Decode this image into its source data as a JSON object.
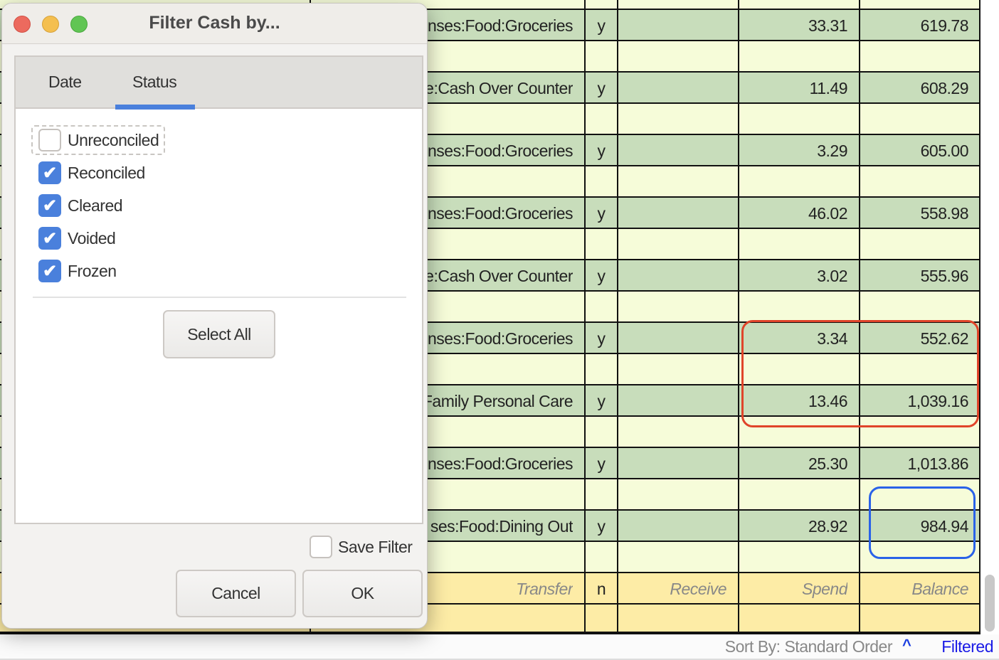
{
  "register": {
    "rows": [
      {
        "transfer": "nses:Food:Groceries",
        "reconcile": "y",
        "receive": "",
        "spend": "33.31",
        "balance": "619.78"
      },
      {
        "transfer": "e:Cash Over Counter",
        "reconcile": "y",
        "receive": "",
        "spend": "11.49",
        "balance": "608.29"
      },
      {
        "transfer": "nses:Food:Groceries",
        "reconcile": "y",
        "receive": "",
        "spend": "3.29",
        "balance": "605.00"
      },
      {
        "transfer": "nses:Food:Groceries",
        "reconcile": "y",
        "receive": "",
        "spend": "46.02",
        "balance": "558.98"
      },
      {
        "transfer": "e:Cash Over Counter",
        "reconcile": "y",
        "receive": "",
        "spend": "3.02",
        "balance": "555.96"
      },
      {
        "transfer": "nses:Food:Groceries",
        "reconcile": "y",
        "receive": "",
        "spend": "3.34",
        "balance": "552.62"
      },
      {
        "transfer": "Family Personal Care",
        "reconcile": "y",
        "receive": "",
        "spend": "13.46",
        "balance": "1,039.16"
      },
      {
        "transfer": "nses:Food:Groceries",
        "reconcile": "y",
        "receive": "",
        "spend": "25.30",
        "balance": "1,013.86"
      },
      {
        "transfer": "ses:Food:Dining Out",
        "reconcile": "y",
        "receive": "",
        "spend": "28.92",
        "balance": "984.94"
      }
    ],
    "blank_entry": {
      "transfer": "Transfer",
      "reconcile": "n",
      "receive": "Receive",
      "spend": "Spend",
      "balance": "Balance"
    },
    "highlight_colors": {
      "red": "#e0442a",
      "blue": "#2a62e8"
    }
  },
  "status_bar": {
    "sort_label": "Sort By: Standard Order",
    "sort_icon": "chevron-up-icon",
    "sort_arrow": "^",
    "filter_label": "Filtered"
  },
  "dialog": {
    "title": "Filter Cash by...",
    "tabs": [
      {
        "label": "Date",
        "active": false
      },
      {
        "label": "Status",
        "active": true
      }
    ],
    "checkboxes": [
      {
        "label": "Unreconciled",
        "checked": false
      },
      {
        "label": "Reconciled",
        "checked": true
      },
      {
        "label": "Cleared",
        "checked": true
      },
      {
        "label": "Voided",
        "checked": true
      },
      {
        "label": "Frozen",
        "checked": true
      }
    ],
    "select_all_label": "Select All",
    "save_filter": {
      "label": "Save Filter",
      "checked": false
    },
    "cancel_label": "Cancel",
    "ok_label": "OK",
    "accent": "#4a80dc"
  }
}
